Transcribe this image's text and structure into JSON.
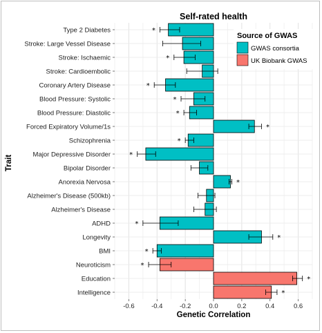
{
  "chart_data": {
    "type": "bar",
    "orientation": "horizontal",
    "title": "Self-rated health",
    "xlabel": "Genetic Correlation",
    "ylabel": "Trait",
    "xlim": [
      -0.7,
      0.7
    ],
    "xticks": [
      -0.6,
      -0.4,
      -0.2,
      0.0,
      0.2,
      0.4,
      0.6
    ],
    "xtick_labels": [
      "-0.6",
      "-0.4",
      "-0.2",
      "0.0",
      "0.2",
      "0.4",
      "0.6"
    ],
    "grid": true,
    "legend": {
      "title": "Source of GWAS",
      "position": "top-right",
      "entries": [
        {
          "label": "GWAS consortia",
          "color": "#00BFC4"
        },
        {
          "label": "UK Biobank GWAS",
          "color": "#F8766D"
        }
      ]
    },
    "categories": [
      "Type 2 Diabetes",
      "Stroke: Large Vessel Disease",
      "Stroke: Ischaemic",
      "Stroke: Cardioembolic",
      "Coronary Artery Disease",
      "Blood Pressure: Systolic",
      "Blood Pressure: Diastolic",
      "Forced Expiratory Volume/1s",
      "Schizophrenia",
      "Major Depressive Disorder",
      "Bipolar Disorder",
      "Anorexia Nervosa",
      "Alzheimer's Disease (500kb)",
      "Alzheimer's Disease",
      "ADHD",
      "Longevity",
      "BMI",
      "Neuroticism",
      "Education",
      "Intelligence"
    ],
    "values": [
      -0.32,
      -0.22,
      -0.21,
      -0.08,
      -0.34,
      -0.14,
      -0.17,
      0.29,
      -0.18,
      -0.48,
      -0.1,
      0.12,
      -0.05,
      -0.06,
      -0.38,
      0.34,
      -0.4,
      -0.38,
      0.59,
      0.41
    ],
    "error_low": [
      -0.38,
      -0.36,
      -0.28,
      -0.19,
      -0.42,
      -0.23,
      -0.21,
      0.25,
      -0.2,
      -0.54,
      -0.16,
      0.11,
      -0.11,
      -0.14,
      -0.5,
      0.25,
      -0.43,
      -0.46,
      0.56,
      0.37
    ],
    "error_high": [
      -0.24,
      -0.09,
      -0.13,
      0.03,
      -0.27,
      -0.06,
      -0.12,
      0.34,
      -0.14,
      -0.41,
      -0.04,
      0.13,
      0.01,
      0.02,
      -0.25,
      0.42,
      -0.37,
      -0.3,
      0.63,
      0.45
    ],
    "source": [
      "GWAS consortia",
      "GWAS consortia",
      "GWAS consortia",
      "GWAS consortia",
      "GWAS consortia",
      "GWAS consortia",
      "GWAS consortia",
      "GWAS consortia",
      "GWAS consortia",
      "GWAS consortia",
      "GWAS consortia",
      "GWAS consortia",
      "GWAS consortia",
      "GWAS consortia",
      "GWAS consortia",
      "GWAS consortia",
      "GWAS consortia",
      "UK Biobank GWAS",
      "UK Biobank GWAS",
      "UK Biobank GWAS"
    ],
    "significance_marker": "*",
    "significant": [
      true,
      false,
      true,
      false,
      true,
      true,
      true,
      true,
      true,
      true,
      false,
      true,
      false,
      false,
      true,
      true,
      true,
      true,
      true,
      true
    ]
  }
}
